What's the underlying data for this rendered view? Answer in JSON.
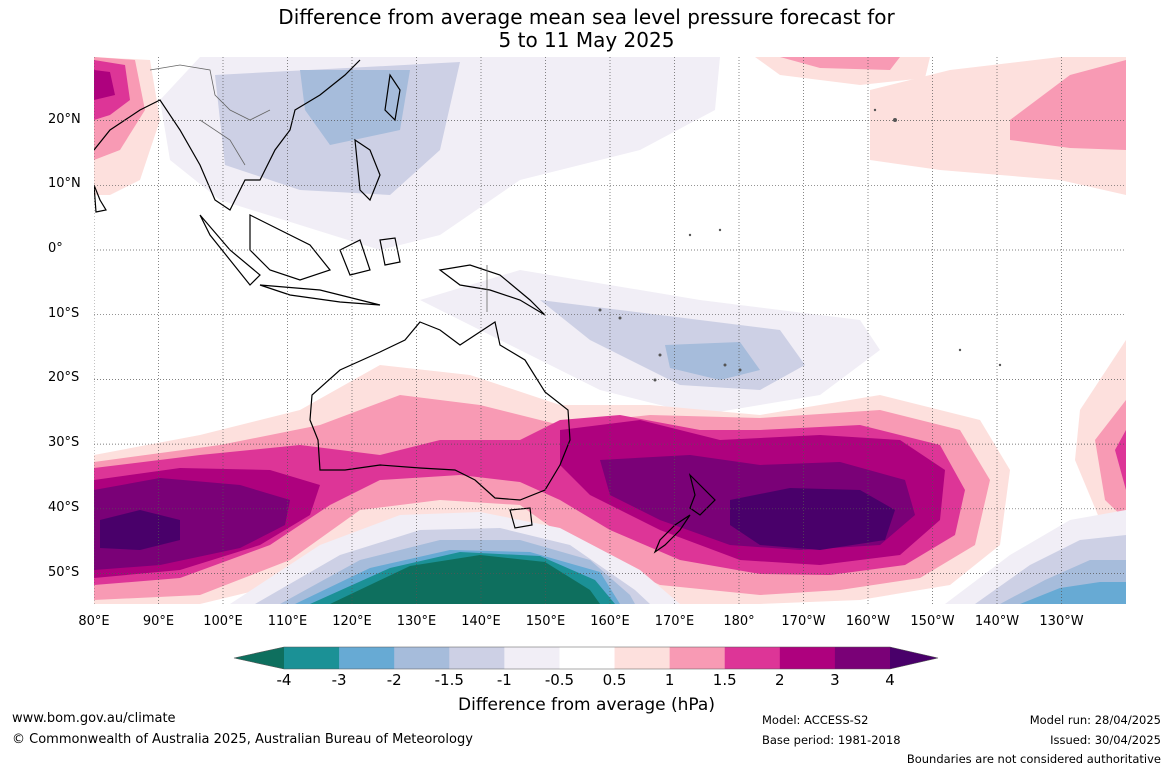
{
  "title": {
    "line1": "Difference from average mean sea level pressure forecast for",
    "line2": "5 to 11 May 2025"
  },
  "map": {
    "lat_labels": [
      "20°N",
      "10°N",
      "0°",
      "10°S",
      "20°S",
      "30°S",
      "40°S",
      "50°S"
    ],
    "lon_labels": [
      "80°E",
      "90°E",
      "100°E",
      "110°E",
      "120°E",
      "130°E",
      "140°E",
      "150°E",
      "160°E",
      "170°E",
      "180°",
      "170°W",
      "160°W",
      "150°W",
      "140°W",
      "130°W"
    ]
  },
  "colorbar": {
    "ticks": [
      "-4",
      "-3",
      "-2",
      "-1.5",
      "-1",
      "-0.5",
      "0.5",
      "1",
      "1.5",
      "2",
      "3",
      "4"
    ],
    "colors": [
      "#0e6f5e",
      "#1b9196",
      "#67aad4",
      "#a6bcdb",
      "#cdd0e5",
      "#f1eef6",
      "#ffffff",
      "#fde0dd",
      "#f89ab4",
      "#dd3597",
      "#ae017e",
      "#7a0177",
      "#49006a"
    ],
    "label": "Difference from average (hPa)"
  },
  "footer": {
    "url": "www.bom.gov.au/climate",
    "copyright": "© Commonwealth of Australia 2025, Australian Bureau of Meteorology",
    "model": "Model: ACCESS-S2",
    "base_period": "Base period: 1981-2018",
    "model_run": "Model run: 28/04/2025",
    "issued": "Issued: 30/04/2025",
    "disclaimer": "Boundaries are not considered authoritative"
  }
}
